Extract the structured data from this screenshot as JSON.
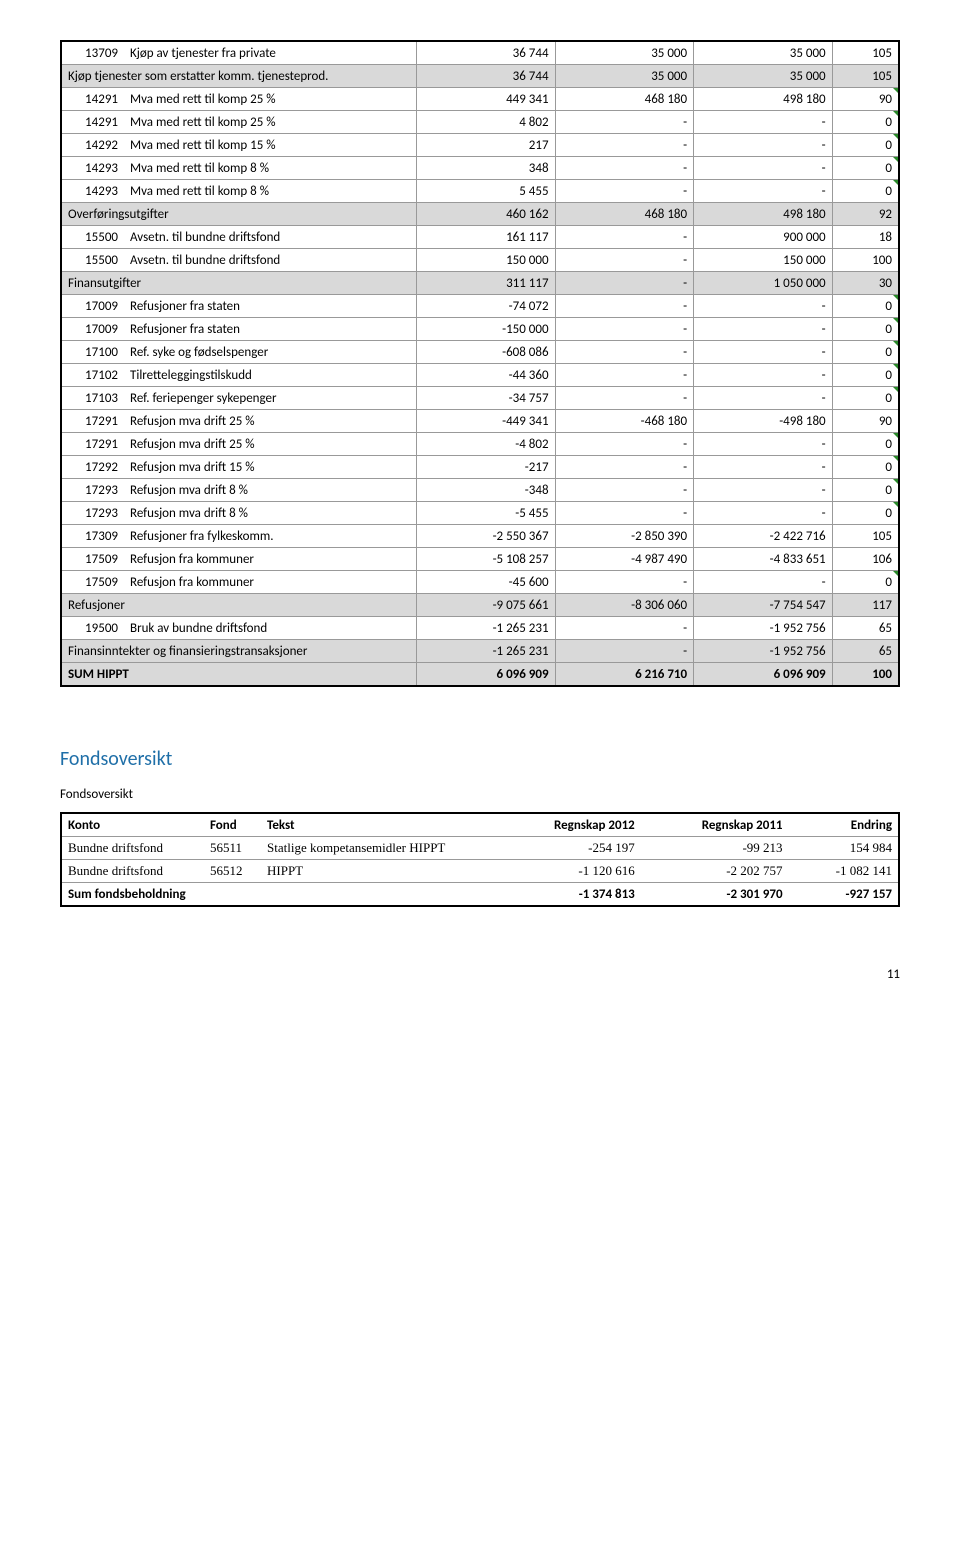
{
  "table1": {
    "rows": [
      {
        "code": "13709",
        "desc": "Kjøp av tjenester fra private",
        "v": [
          "36 744",
          "35 000",
          "35 000",
          "105"
        ],
        "shade": false,
        "tick": false,
        "span": false,
        "bold": false
      },
      {
        "code": "",
        "desc": "Kjøp tjenester som erstatter komm. tjenesteprod.",
        "v": [
          "36 744",
          "35 000",
          "35 000",
          "105"
        ],
        "shade": true,
        "tick": false,
        "span": true,
        "bold": false
      },
      {
        "code": "14291",
        "desc": "Mva med rett til komp 25 %",
        "v": [
          "449 341",
          "468 180",
          "498 180",
          "90"
        ],
        "shade": false,
        "tick": true,
        "span": false,
        "bold": false
      },
      {
        "code": "14291",
        "desc": "Mva med rett til komp 25 %",
        "v": [
          "4 802",
          "-",
          "-",
          "0"
        ],
        "shade": false,
        "tick": true,
        "span": false,
        "bold": false
      },
      {
        "code": "14292",
        "desc": "Mva med rett til komp 15 %",
        "v": [
          "217",
          "-",
          "-",
          "0"
        ],
        "shade": false,
        "tick": true,
        "span": false,
        "bold": false
      },
      {
        "code": "14293",
        "desc": "Mva med rett til komp 8 %",
        "v": [
          "348",
          "-",
          "-",
          "0"
        ],
        "shade": false,
        "tick": true,
        "span": false,
        "bold": false
      },
      {
        "code": "14293",
        "desc": "Mva med rett til komp 8 %",
        "v": [
          "5 455",
          "-",
          "-",
          "0"
        ],
        "shade": false,
        "tick": true,
        "span": false,
        "bold": false
      },
      {
        "code": "",
        "desc": "Overføringsutgifter",
        "v": [
          "460 162",
          "468 180",
          "498 180",
          "92"
        ],
        "shade": true,
        "tick": false,
        "span": true,
        "bold": false
      },
      {
        "code": "15500",
        "desc": "Avsetn. til bundne driftsfond",
        "v": [
          "161 117",
          "-",
          "900 000",
          "18"
        ],
        "shade": false,
        "tick": false,
        "span": false,
        "bold": false
      },
      {
        "code": "15500",
        "desc": "Avsetn. til bundne driftsfond",
        "v": [
          "150 000",
          "-",
          "150 000",
          "100"
        ],
        "shade": false,
        "tick": false,
        "span": false,
        "bold": false
      },
      {
        "code": "",
        "desc": "Finansutgifter",
        "v": [
          "311 117",
          "-",
          "1 050 000",
          "30"
        ],
        "shade": true,
        "tick": false,
        "span": true,
        "bold": false
      },
      {
        "code": "17009",
        "desc": "Refusjoner fra staten",
        "v": [
          "-74 072",
          "-",
          "-",
          "0"
        ],
        "shade": false,
        "tick": true,
        "span": false,
        "bold": false
      },
      {
        "code": "17009",
        "desc": "Refusjoner fra staten",
        "v": [
          "-150 000",
          "-",
          "-",
          "0"
        ],
        "shade": false,
        "tick": true,
        "span": false,
        "bold": false
      },
      {
        "code": "17100",
        "desc": "Ref. syke og fødselspenger",
        "v": [
          "-608 086",
          "-",
          "-",
          "0"
        ],
        "shade": false,
        "tick": true,
        "span": false,
        "bold": false
      },
      {
        "code": "17102",
        "desc": "Tilretteleggingstilskudd",
        "v": [
          "-44 360",
          "-",
          "-",
          "0"
        ],
        "shade": false,
        "tick": true,
        "span": false,
        "bold": false
      },
      {
        "code": "17103",
        "desc": "Ref. feriepenger sykepenger",
        "v": [
          "-34 757",
          "-",
          "-",
          "0"
        ],
        "shade": false,
        "tick": true,
        "span": false,
        "bold": false
      },
      {
        "code": "17291",
        "desc": "Refusjon mva drift 25 %",
        "v": [
          "-449 341",
          "-468 180",
          "-498 180",
          "90"
        ],
        "shade": false,
        "tick": false,
        "span": false,
        "bold": false
      },
      {
        "code": "17291",
        "desc": "Refusjon mva drift 25 %",
        "v": [
          "-4 802",
          "-",
          "-",
          "0"
        ],
        "shade": false,
        "tick": true,
        "span": false,
        "bold": false
      },
      {
        "code": "17292",
        "desc": "Refusjon mva drift 15 %",
        "v": [
          "-217",
          "-",
          "-",
          "0"
        ],
        "shade": false,
        "tick": true,
        "span": false,
        "bold": false
      },
      {
        "code": "17293",
        "desc": "Refusjon mva drift 8 %",
        "v": [
          "-348",
          "-",
          "-",
          "0"
        ],
        "shade": false,
        "tick": true,
        "span": false,
        "bold": false
      },
      {
        "code": "17293",
        "desc": "Refusjon mva drift 8 %",
        "v": [
          "-5 455",
          "-",
          "-",
          "0"
        ],
        "shade": false,
        "tick": true,
        "span": false,
        "bold": false
      },
      {
        "code": "17309",
        "desc": "Refusjoner fra fylkeskomm.",
        "v": [
          "-2 550 367",
          "-2 850 390",
          "-2 422 716",
          "105"
        ],
        "shade": false,
        "tick": false,
        "span": false,
        "bold": false
      },
      {
        "code": "17509",
        "desc": "Refusjon fra kommuner",
        "v": [
          "-5 108 257",
          "-4 987 490",
          "-4 833 651",
          "106"
        ],
        "shade": false,
        "tick": false,
        "span": false,
        "bold": false
      },
      {
        "code": "17509",
        "desc": "Refusjon fra kommuner",
        "v": [
          "-45 600",
          "-",
          "-",
          "0"
        ],
        "shade": false,
        "tick": true,
        "span": false,
        "bold": false
      },
      {
        "code": "",
        "desc": "Refusjoner",
        "v": [
          "-9 075 661",
          "-8 306 060",
          "-7 754 547",
          "117"
        ],
        "shade": true,
        "tick": false,
        "span": true,
        "bold": false
      },
      {
        "code": "19500",
        "desc": "Bruk av bundne driftsfond",
        "v": [
          "-1 265 231",
          "-",
          "-1 952 756",
          "65"
        ],
        "shade": false,
        "tick": false,
        "span": false,
        "bold": false
      },
      {
        "code": "",
        "desc": "Finansinntekter og finansieringstransaksjoner",
        "v": [
          "-1 265 231",
          "-",
          "-1 952 756",
          "65"
        ],
        "shade": true,
        "tick": false,
        "span": true,
        "bold": false
      },
      {
        "code": "",
        "desc": "SUM HIPPT",
        "v": [
          "6 096 909",
          "6 216 710",
          "6 096 909",
          "100"
        ],
        "shade": true,
        "tick": false,
        "span": true,
        "bold": true
      }
    ]
  },
  "section2_title": "Fondsoversikt",
  "fonds_label": "Fondsoversikt",
  "table2": {
    "headers": [
      "Konto",
      "Fond",
      "Tekst",
      "Regnskap 2012",
      "Regnskap 2011",
      "Endring"
    ],
    "rows": [
      {
        "c1": "Bundne driftsfond",
        "c2": "56511",
        "c3": "Statlige kompetansemidler HIPPT",
        "v": [
          "-254 197",
          "-99 213",
          "154 984"
        ],
        "serif": true,
        "bold": false
      },
      {
        "c1": "Bundne driftsfond",
        "c2": "56512",
        "c3": "HIPPT",
        "v": [
          "-1 120 616",
          "-2 202 757",
          "-1 082 141"
        ],
        "serif": true,
        "bold": false
      }
    ],
    "sumrow": {
      "label": "Sum fondsbeholdning",
      "v": [
        "-1 374 813",
        "-2 301 970",
        "-927 157"
      ]
    }
  },
  "page_number": "11"
}
